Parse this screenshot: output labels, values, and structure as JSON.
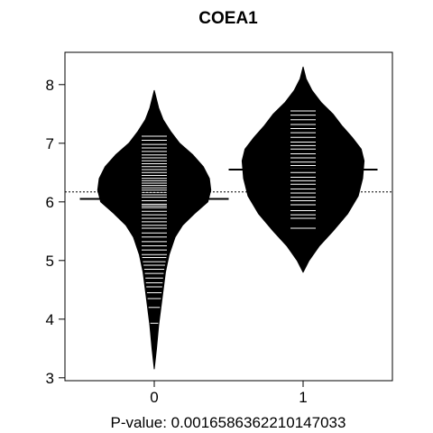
{
  "chart_data": {
    "type": "beanplot",
    "title": "COEA1",
    "xlabel": "P-value: 0.00165863622101470​33",
    "ylabel": "",
    "categories": [
      "0",
      "1"
    ],
    "yticks": [
      3,
      4,
      5,
      6,
      7,
      8
    ],
    "xticks": [
      "0",
      "1"
    ],
    "ylim": [
      2.95,
      8.55
    ],
    "overall_mean": 6.17,
    "grid": false,
    "legend": "none",
    "colors": {
      "fill": "#000000",
      "lines": "#ffffff",
      "background": "#ffffff"
    },
    "groups": [
      {
        "category": "0",
        "mean": 6.05,
        "y_min": 3.15,
        "y_max": 7.9,
        "density": [
          [
            3.15,
            0.0
          ],
          [
            3.5,
            0.015
          ],
          [
            3.9,
            0.03
          ],
          [
            4.2,
            0.045
          ],
          [
            4.5,
            0.06
          ],
          [
            4.8,
            0.075
          ],
          [
            5.1,
            0.1
          ],
          [
            5.4,
            0.14
          ],
          [
            5.6,
            0.19
          ],
          [
            5.8,
            0.27
          ],
          [
            6.0,
            0.36
          ],
          [
            6.2,
            0.38
          ],
          [
            6.4,
            0.37
          ],
          [
            6.6,
            0.33
          ],
          [
            6.8,
            0.26
          ],
          [
            7.0,
            0.17
          ],
          [
            7.2,
            0.11
          ],
          [
            7.4,
            0.06
          ],
          [
            7.6,
            0.03
          ],
          [
            7.9,
            0.0
          ]
        ],
        "observations": [
          3.93,
          4.2,
          4.35,
          4.45,
          4.55,
          4.62,
          4.7,
          4.78,
          4.85,
          4.92,
          4.98,
          5.05,
          5.1,
          5.18,
          5.25,
          5.32,
          5.4,
          5.47,
          5.55,
          5.6,
          5.66,
          5.72,
          5.78,
          5.84,
          5.9,
          5.93,
          5.96,
          6.02,
          6.08,
          6.12,
          6.16,
          6.2,
          6.24,
          6.28,
          6.32,
          6.36,
          6.4,
          6.45,
          6.5,
          6.55,
          6.6,
          6.65,
          6.7,
          6.75,
          6.8,
          6.86,
          6.92,
          6.98,
          7.05,
          7.12
        ]
      },
      {
        "category": "1",
        "mean": 6.55,
        "y_min": 4.8,
        "y_max": 8.3,
        "density": [
          [
            4.8,
            0.0
          ],
          [
            5.0,
            0.04
          ],
          [
            5.25,
            0.11
          ],
          [
            5.5,
            0.2
          ],
          [
            5.8,
            0.3
          ],
          [
            6.1,
            0.37
          ],
          [
            6.4,
            0.4
          ],
          [
            6.7,
            0.41
          ],
          [
            6.9,
            0.39
          ],
          [
            7.1,
            0.33
          ],
          [
            7.3,
            0.26
          ],
          [
            7.5,
            0.2
          ],
          [
            7.7,
            0.12
          ],
          [
            7.9,
            0.06
          ],
          [
            8.1,
            0.02
          ],
          [
            8.3,
            0.0
          ]
        ],
        "observations": [
          5.55,
          5.72,
          5.78,
          5.85,
          5.95,
          6.02,
          6.08,
          6.15,
          6.22,
          6.3,
          6.36,
          6.42,
          6.5,
          6.56,
          6.62,
          6.68,
          6.75,
          6.82,
          6.9,
          6.96,
          7.02,
          7.1,
          7.18,
          7.25,
          7.32,
          7.4,
          7.48,
          7.55
        ]
      }
    ]
  }
}
